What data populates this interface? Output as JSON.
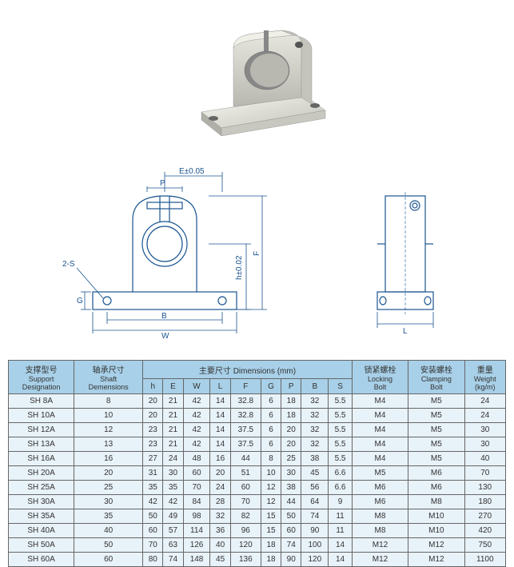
{
  "photo": {
    "bg": "#f5f5f0"
  },
  "diagram": {
    "stroke": "#1a5490",
    "stroke_width": 1.2,
    "labels": {
      "E": "E±0.05",
      "P": "P",
      "h": "h±0.02",
      "F": "F",
      "G": "G",
      "B": "B",
      "W": "W",
      "L": "L",
      "S": "2-S"
    }
  },
  "table": {
    "header_bg": "#a8d0e8",
    "row_bg": "#e8f2f9",
    "headers": {
      "designation": {
        "cn": "支撑型号",
        "en1": "Support",
        "en2": "Designation"
      },
      "shaft": {
        "cn": "轴承尺寸",
        "en1": "Shaft",
        "en2": "Demensions"
      },
      "dims": {
        "cn": "主要尺寸 Dimensions (mm)"
      },
      "locking": {
        "cn": "锁紧螺栓",
        "en1": "Locking",
        "en2": "Bolt"
      },
      "clamping": {
        "cn": "安装螺栓",
        "en1": "Clamping",
        "en2": "Bolt"
      },
      "weight": {
        "cn": "重量",
        "en1": "Weight",
        "en2": "(kg/m)"
      }
    },
    "dim_cols": [
      "h",
      "E",
      "W",
      "L",
      "F",
      "G",
      "P",
      "B",
      "S"
    ],
    "rows": [
      {
        "model": "SH 8A",
        "shaft": "8",
        "h": "20",
        "E": "21",
        "W": "42",
        "L": "14",
        "F": "32.8",
        "G": "6",
        "P": "18",
        "B": "32",
        "S": "5.5",
        "lock": "M4",
        "clamp": "M5",
        "wt": "24"
      },
      {
        "model": "SH 10A",
        "shaft": "10",
        "h": "20",
        "E": "21",
        "W": "42",
        "L": "14",
        "F": "32.8",
        "G": "6",
        "P": "18",
        "B": "32",
        "S": "5.5",
        "lock": "M4",
        "clamp": "M5",
        "wt": "24"
      },
      {
        "model": "SH 12A",
        "shaft": "12",
        "h": "23",
        "E": "21",
        "W": "42",
        "L": "14",
        "F": "37.5",
        "G": "6",
        "P": "20",
        "B": "32",
        "S": "5.5",
        "lock": "M4",
        "clamp": "M5",
        "wt": "30"
      },
      {
        "model": "SH 13A",
        "shaft": "13",
        "h": "23",
        "E": "21",
        "W": "42",
        "L": "14",
        "F": "37.5",
        "G": "6",
        "P": "20",
        "B": "32",
        "S": "5.5",
        "lock": "M4",
        "clamp": "M5",
        "wt": "30"
      },
      {
        "model": "SH 16A",
        "shaft": "16",
        "h": "27",
        "E": "24",
        "W": "48",
        "L": "16",
        "F": "44",
        "G": "8",
        "P": "25",
        "B": "38",
        "S": "5.5",
        "lock": "M4",
        "clamp": "M5",
        "wt": "40"
      },
      {
        "model": "SH 20A",
        "shaft": "20",
        "h": "31",
        "E": "30",
        "W": "60",
        "L": "20",
        "F": "51",
        "G": "10",
        "P": "30",
        "B": "45",
        "S": "6.6",
        "lock": "M5",
        "clamp": "M6",
        "wt": "70"
      },
      {
        "model": "SH 25A",
        "shaft": "25",
        "h": "35",
        "E": "35",
        "W": "70",
        "L": "24",
        "F": "60",
        "G": "12",
        "P": "38",
        "B": "56",
        "S": "6.6",
        "lock": "M6",
        "clamp": "M6",
        "wt": "130"
      },
      {
        "model": "SH 30A",
        "shaft": "30",
        "h": "42",
        "E": "42",
        "W": "84",
        "L": "28",
        "F": "70",
        "G": "12",
        "P": "44",
        "B": "64",
        "S": "9",
        "lock": "M6",
        "clamp": "M8",
        "wt": "180"
      },
      {
        "model": "SH 35A",
        "shaft": "35",
        "h": "50",
        "E": "49",
        "W": "98",
        "L": "32",
        "F": "82",
        "G": "15",
        "P": "50",
        "B": "74",
        "S": "11",
        "lock": "M8",
        "clamp": "M10",
        "wt": "270"
      },
      {
        "model": "SH 40A",
        "shaft": "40",
        "h": "60",
        "E": "57",
        "W": "114",
        "L": "36",
        "F": "96",
        "G": "15",
        "P": "60",
        "B": "90",
        "S": "11",
        "lock": "M8",
        "clamp": "M10",
        "wt": "420"
      },
      {
        "model": "SH 50A",
        "shaft": "50",
        "h": "70",
        "E": "63",
        "W": "126",
        "L": "40",
        "F": "120",
        "G": "18",
        "P": "74",
        "B": "100",
        "S": "14",
        "lock": "M12",
        "clamp": "M12",
        "wt": "750"
      },
      {
        "model": "SH 60A",
        "shaft": "60",
        "h": "80",
        "E": "74",
        "W": "148",
        "L": "45",
        "F": "136",
        "G": "18",
        "P": "90",
        "B": "120",
        "S": "14",
        "lock": "M12",
        "clamp": "M12",
        "wt": "1100"
      }
    ]
  }
}
